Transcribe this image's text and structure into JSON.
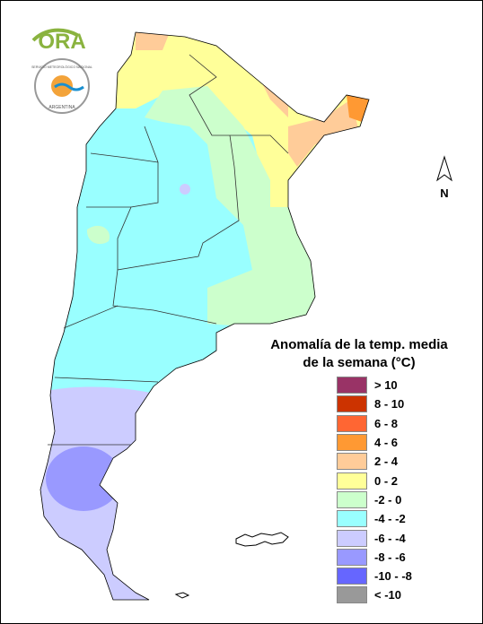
{
  "logo": {
    "text": "ORA",
    "seal_top": "SERVICIO METEOROLÓGICO NACIONAL",
    "seal_bottom": "ARGENTINA"
  },
  "compass": "N",
  "legend": {
    "title": [
      "Anomalía de la temp. media",
      "de la semana (°C)"
    ],
    "items": [
      {
        "label": "> 10",
        "color": "#993366"
      },
      {
        "label": "8 - 10",
        "color": "#cc3300"
      },
      {
        "label": "6 - 8",
        "color": "#ff6633"
      },
      {
        "label": "4 - 6",
        "color": "#ff9933"
      },
      {
        "label": "2 - 4",
        "color": "#ffcc99"
      },
      {
        "label": "0 - 2",
        "color": "#ffff99"
      },
      {
        "label": "-2 - 0",
        "color": "#ccffcc"
      },
      {
        "label": "-4 - -2",
        "color": "#99ffff"
      },
      {
        "label": "-6 - -4",
        "color": "#ccccff"
      },
      {
        "label": "-8 - -6",
        "color": "#9999ff"
      },
      {
        "label": "-10 - -8",
        "color": "#6666ff"
      },
      {
        "label": "< -10",
        "color": "#999999"
      }
    ]
  }
}
